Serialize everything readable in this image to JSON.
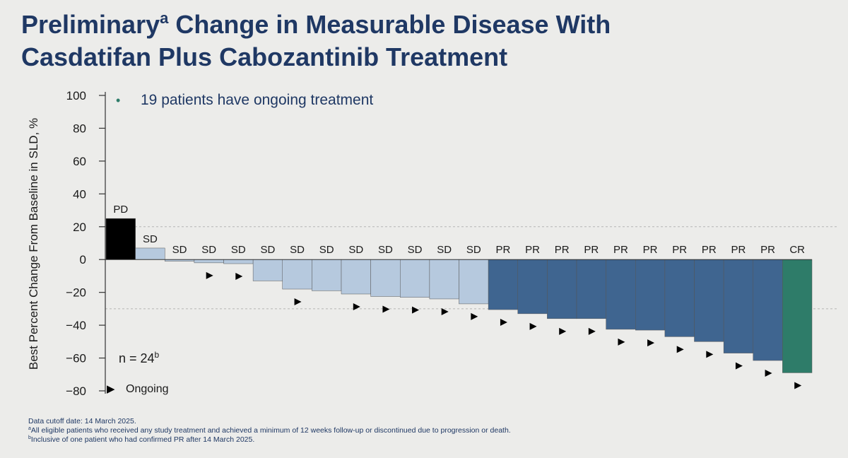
{
  "slide": {
    "title_part1": "Preliminary",
    "title_sup": "a",
    "title_part2": " Change in Measurable Disease With",
    "title_line2": "Casdatifan Plus Cabozantinib Treatment",
    "bullet": "19 patients have ongoing treatment",
    "n_label": "n = 24",
    "n_sup": "b",
    "ongoing_legend": "Ongoing",
    "ongoing_marker": "▶",
    "bullet_marker": "•",
    "footnote_cutoff": "Data cutoff date: 14 March 2025.",
    "footnote_a_sup": "a",
    "footnote_a": "All eligible patients who received any study treatment and achieved a minimum of 12 weeks follow-up or discontinued due to progression or death.",
    "footnote_b_sup": "b",
    "footnote_b": "Inclusive of one patient who had confirmed PR after 14 March 2025."
  },
  "chart_data": {
    "type": "bar",
    "ylabel": "Best Percent Change From Baseline in SLD, %",
    "ylim": [
      -80,
      100
    ],
    "yticks": [
      100,
      80,
      60,
      40,
      20,
      0,
      -20,
      -40,
      -60,
      -80
    ],
    "reference_lines": [
      20,
      -30
    ],
    "categories": [
      "PD",
      "SD",
      "SD",
      "SD",
      "SD",
      "SD",
      "SD",
      "SD",
      "SD",
      "SD",
      "SD",
      "SD",
      "SD",
      "PR",
      "PR",
      "PR",
      "PR",
      "PR",
      "PR",
      "PR",
      "PR",
      "PR",
      "PR",
      "CR"
    ],
    "values": [
      25,
      7,
      -1,
      -2,
      -2.5,
      -13,
      -18,
      -19,
      -21,
      -22.5,
      -23,
      -24,
      -27,
      -30.5,
      -33,
      -36,
      -36,
      -42.5,
      -43,
      -47,
      -50,
      -57,
      -61.5,
      -69
    ],
    "ongoing": [
      false,
      false,
      false,
      true,
      true,
      false,
      true,
      false,
      true,
      true,
      true,
      true,
      true,
      true,
      true,
      true,
      true,
      true,
      true,
      true,
      true,
      true,
      true,
      true
    ],
    "colors": {
      "PD": "#000000",
      "SD": "#b6c9de",
      "PR": "#3f6590",
      "CR": "#2e7c69",
      "bullet": "#2e7c69",
      "axis": "#333333",
      "reference": "#b5b5b5"
    }
  }
}
